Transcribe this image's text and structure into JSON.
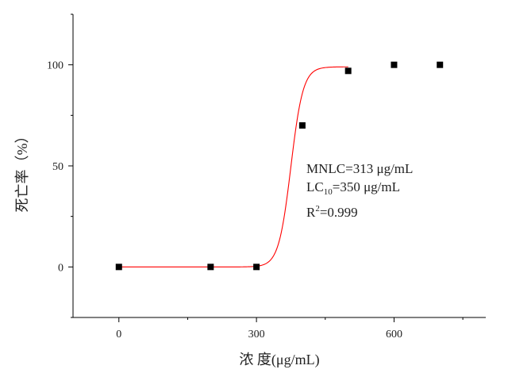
{
  "chart_data": {
    "type": "scatter",
    "xlabel": "浓 度(μg/mL)",
    "ylabel": "死亡率（%）",
    "xlim": [
      -100,
      800
    ],
    "ylim": [
      -25,
      125
    ],
    "x_ticks": [
      0,
      300,
      600
    ],
    "y_ticks": [
      0,
      50,
      100
    ],
    "grid": false,
    "legend": "none",
    "series": [
      {
        "marker": "square",
        "color": "#000000",
        "x": [
          0,
          200,
          300,
          400,
          500,
          600,
          700
        ],
        "y": [
          0,
          0,
          0,
          70,
          97,
          100,
          100
        ]
      }
    ],
    "fit_curve": {
      "style": "solid",
      "color": "#ff0000",
      "x_range": [
        0,
        500
      ],
      "model": "logistic",
      "bottom": 0,
      "top": 99,
      "x0": 375,
      "k": 0.075
    },
    "annotations": {
      "mnlc": "MNLC=313 μg/mL",
      "lc_prefix": "LC",
      "lc_sub": "10",
      "lc_value": "=350 μg/mL",
      "r_prefix": "R",
      "r_sup": "2",
      "r_value": "=0.999"
    }
  }
}
